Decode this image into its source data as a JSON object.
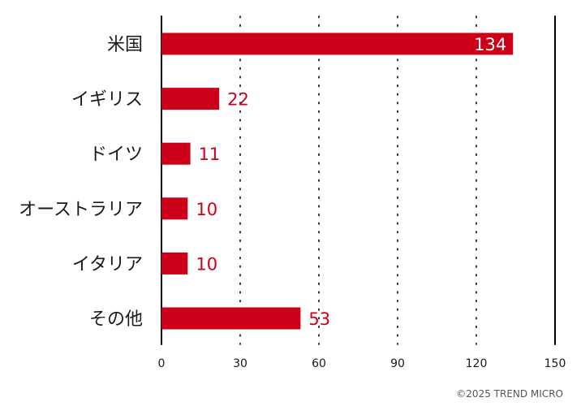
{
  "chart_data": {
    "type": "bar",
    "orientation": "horizontal",
    "categories": [
      "米国",
      "イギリス",
      "ドイツ",
      "オーストラリア",
      "イタリア",
      "その他"
    ],
    "values": [
      134,
      22,
      11,
      10,
      10,
      53
    ],
    "xlim": [
      0,
      150
    ],
    "xticks": [
      0,
      30,
      60,
      90,
      120,
      150
    ],
    "grid": true,
    "bar_color": "#cc0019",
    "label_color_outside": "#cc0019",
    "label_color_inside": "#ffffff"
  },
  "footer": {
    "copyright": "©2025 TREND MICRO"
  }
}
